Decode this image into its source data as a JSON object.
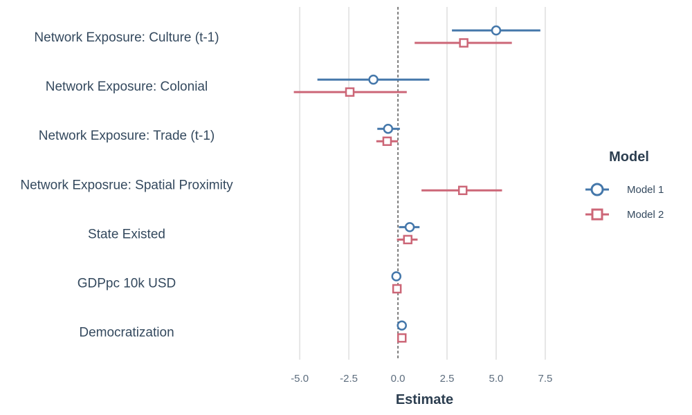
{
  "chart_data": {
    "type": "coefficient-plot",
    "xlabel": "Estimate",
    "xlim": [
      -7.4,
      8.7
    ],
    "xticks": [
      -5.0,
      -2.5,
      0.0,
      2.5,
      5.0,
      7.5
    ],
    "xtick_labels": [
      "-5.0",
      "-2.5",
      "0.0",
      "2.5",
      "5.0",
      "7.5"
    ],
    "reference_line": 0,
    "grid": "vertical-major",
    "terms": [
      "Network Exposure: Culture (t-1)",
      "Network Exposure: Colonial",
      "Network Exposure: Trade (t-1)",
      "Network Exposrue: Spatial Proximity",
      "State Existed",
      "GDPpc 10k USD",
      "Democratization"
    ],
    "legend": {
      "title": "Model",
      "position": "right"
    },
    "series": [
      {
        "name": "Model 1",
        "color": "#4477aa",
        "marker": "circle",
        "points": [
          {
            "term": 0,
            "estimate": 5.0,
            "low": 2.75,
            "high": 7.25
          },
          {
            "term": 1,
            "estimate": -1.25,
            "low": -4.1,
            "high": 1.6
          },
          {
            "term": 2,
            "estimate": -0.5,
            "low": -1.05,
            "high": 0.1
          },
          {
            "term": 4,
            "estimate": 0.6,
            "low": 0.05,
            "high": 1.1
          },
          {
            "term": 5,
            "estimate": -0.08,
            "low": -0.15,
            "high": -0.01
          },
          {
            "term": 6,
            "estimate": 0.2,
            "low": 0.14,
            "high": 0.26
          }
        ]
      },
      {
        "name": "Model 2",
        "color": "#cc6677",
        "marker": "square",
        "points": [
          {
            "term": 0,
            "estimate": 3.35,
            "low": 0.85,
            "high": 5.8
          },
          {
            "term": 1,
            "estimate": -2.45,
            "low": -5.3,
            "high": 0.45
          },
          {
            "term": 2,
            "estimate": -0.55,
            "low": -1.1,
            "high": 0.0
          },
          {
            "term": 3,
            "estimate": 3.3,
            "low": 1.2,
            "high": 5.3
          },
          {
            "term": 4,
            "estimate": 0.5,
            "low": -0.05,
            "high": 1.0
          },
          {
            "term": 5,
            "estimate": -0.05,
            "low": -0.12,
            "high": 0.02
          },
          {
            "term": 6,
            "estimate": 0.2,
            "low": 0.14,
            "high": 0.26
          }
        ]
      }
    ]
  }
}
